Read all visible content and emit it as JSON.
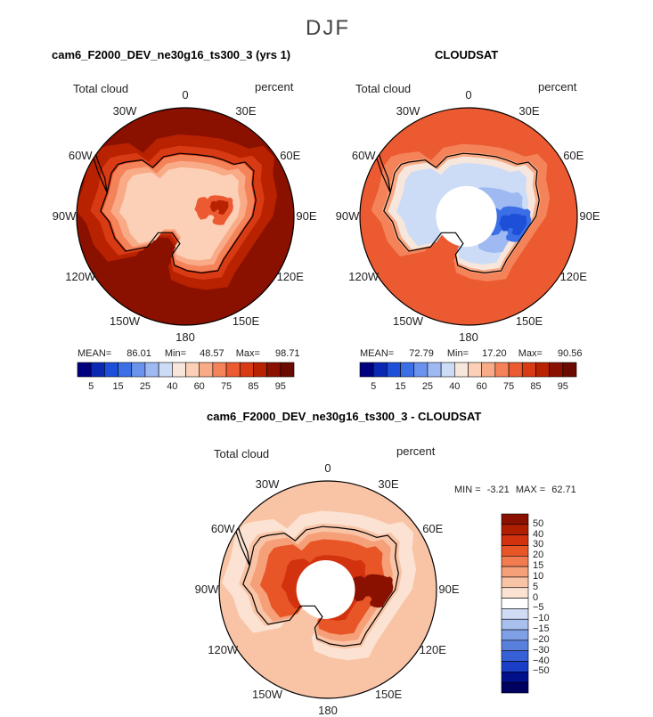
{
  "title": "DJF",
  "panels": [
    {
      "id": "model",
      "title": "cam6_F2000_DEV_ne30g16_ts300_3 (yrs 1)",
      "left_label": "Total cloud",
      "right_label": "percent",
      "lon_labels": [
        "0",
        "30E",
        "60E",
        "90E",
        "120E",
        "150E",
        "180",
        "150W",
        "120W",
        "90W",
        "60W",
        "30W"
      ],
      "stats": {
        "mean_label": "MEAN=",
        "mean": "86.01",
        "min_label": "Min=",
        "min": "48.57",
        "max_label": "Max=",
        "max": "98.71"
      },
      "colorbar_labels": [
        "5",
        "15",
        "25",
        "40",
        "60",
        "75",
        "85",
        "95"
      ]
    },
    {
      "id": "obs",
      "title": "CLOUDSAT",
      "left_label": "Total cloud",
      "right_label": "percent",
      "lon_labels": [
        "0",
        "30E",
        "60E",
        "90E",
        "120E",
        "150E",
        "180",
        "150W",
        "120W",
        "90W",
        "60W",
        "30W"
      ],
      "stats": {
        "mean_label": "MEAN=",
        "mean": "72.79",
        "min_label": "Min=",
        "min": "17.20",
        "max_label": "Max=",
        "max": "90.56"
      },
      "colorbar_labels": [
        "5",
        "15",
        "25",
        "40",
        "60",
        "75",
        "85",
        "95"
      ]
    },
    {
      "id": "diff",
      "title": "cam6_F2000_DEV_ne30g16_ts300_3 - CLOUDSAT",
      "left_label": "Total cloud",
      "right_label": "percent",
      "lon_labels": [
        "0",
        "30E",
        "60E",
        "90E",
        "120E",
        "150E",
        "180",
        "150W",
        "120W",
        "90W",
        "60W",
        "30W"
      ],
      "stats": {
        "min_label": "MIN =",
        "min": "-3.21",
        "max_label": "MAX =",
        "max": "62.71"
      },
      "colorbar_labels": [
        "50",
        "40",
        "30",
        "20",
        "15",
        "10",
        "5",
        "0",
        "−5",
        "−10",
        "−15",
        "−20",
        "−30",
        "−40",
        "−50"
      ]
    }
  ],
  "colors": {
    "seq": [
      "#00007f",
      "#0a28b4",
      "#1e4fd8",
      "#3c6fe6",
      "#6b93ee",
      "#9fbaf2",
      "#cddcf6",
      "#f7e6dc",
      "#fcd0b6",
      "#f9aa86",
      "#f4835a",
      "#ec5a31",
      "#d83a14",
      "#b82200",
      "#8a1000",
      "#6a0a00"
    ],
    "div": [
      "#8a1000",
      "#b01e00",
      "#d2320e",
      "#e85628",
      "#f27c50",
      "#f6a07a",
      "#f9c4a6",
      "#fbe2d2",
      "#ffffff",
      "#cfdcf4",
      "#a7c0ee",
      "#7f9fe6",
      "#5a80de",
      "#3760d6",
      "#1a3ec8",
      "#00108a",
      "#000060"
    ]
  }
}
